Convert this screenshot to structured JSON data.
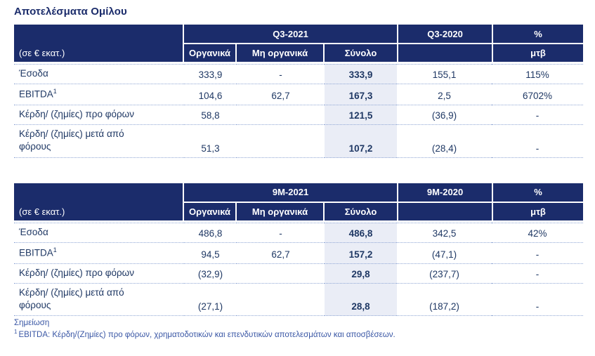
{
  "title": "Αποτελέσματα Ομίλου",
  "colors": {
    "header_bg": "#1b2c6b",
    "body_text": "#1f3864",
    "total_shade": "#eaedf6",
    "dotted_line": "#8fa6d4",
    "footnote_text": "#3a57a5"
  },
  "tables": [
    {
      "unit_label": "(σε € εκατ.)",
      "year_group": "Q3-2021",
      "prev_year": "Q3-2020",
      "pct_header": "%",
      "sub_org": "Οργανικά",
      "sub_nonorg": "Μη οργανικά",
      "sub_total": "Σύνολο",
      "mtb_label": "μτβ",
      "rows": [
        {
          "label": "Έσοδα",
          "label2": "",
          "label_sup": "",
          "organic": "333,9",
          "non_organic": "-",
          "total": "333,9",
          "prev": "155,1",
          "pct": "115%"
        },
        {
          "label": "EBITDA",
          "label2": "",
          "label_sup": "1",
          "organic": "104,6",
          "non_organic": "62,7",
          "total": "167,3",
          "prev": "2,5",
          "pct": "6702%"
        },
        {
          "label": "Κέρδη/ (ζημίες) προ φόρων",
          "label2": "",
          "label_sup": "",
          "organic": "58,8",
          "non_organic": "",
          "total": "121,5",
          "prev": "(36,9)",
          "pct": "-"
        },
        {
          "label": "Κέρδη/ (ζημίες) μετά από",
          "label2": "φόρους",
          "label_sup": "",
          "organic": "51,3",
          "non_organic": "",
          "total": "107,2",
          "prev": "(28,4)",
          "pct": "-"
        }
      ]
    },
    {
      "unit_label": "(σε € εκατ.)",
      "year_group": "9M-2021",
      "prev_year": "9M-2020",
      "pct_header": "%",
      "sub_org": "Οργανικά",
      "sub_nonorg": "Μη οργανικά",
      "sub_total": "Σύνολο",
      "mtb_label": "μτβ",
      "rows": [
        {
          "label": "Έσοδα",
          "label2": "",
          "label_sup": "",
          "organic": "486,8",
          "non_organic": "-",
          "total": "486,8",
          "prev": "342,5",
          "pct": "42%"
        },
        {
          "label": "EBITDA",
          "label2": "",
          "label_sup": "1",
          "organic": "94,5",
          "non_organic": "62,7",
          "total": "157,2",
          "prev": "(47,1)",
          "pct": "-"
        },
        {
          "label": "Κέρδη/ (ζημίες) προ φόρων",
          "label2": "",
          "label_sup": "",
          "organic": "(32,9)",
          "non_organic": "",
          "total": "29,8",
          "prev": "(237,7)",
          "pct": "-"
        },
        {
          "label": "Κέρδη/ (ζημίες) μετά από",
          "label2": "φόρους",
          "label_sup": "",
          "organic": "(27,1)",
          "non_organic": "",
          "total": "28,8",
          "prev": "(187,2)",
          "pct": "-"
        }
      ]
    }
  ],
  "footnote": {
    "heading": "Σημείωση",
    "note_sup": "1",
    "note_text": "EBITDA: Κέρδη/(Ζημίες) προ φόρων, χρηματοδοτικών και επενδυτικών αποτελεσμάτων και αποσβέσεων."
  }
}
